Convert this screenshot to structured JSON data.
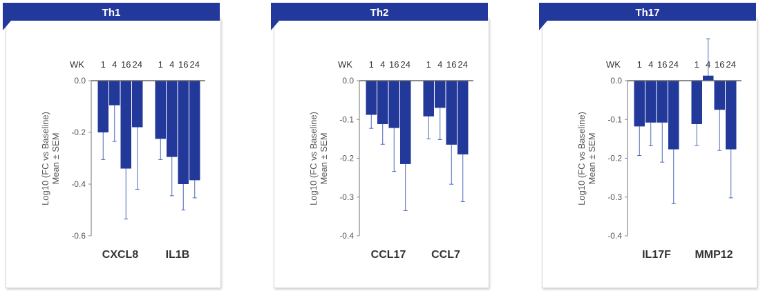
{
  "colors": {
    "bar": "#22399a",
    "banner": "#23389b",
    "error": "#4a68b5",
    "axis": "#888888",
    "text": "#555555"
  },
  "ylabel_line1": "Log10 (FC vs Baseline)",
  "ylabel_line2": "Mean ± SEM",
  "week_label": "WK",
  "chart_data": [
    {
      "type": "bar",
      "title": "Th1",
      "weeks": [
        "1",
        "4",
        "16",
        "24"
      ],
      "ylim": [
        -0.6,
        0.0
      ],
      "yticks": [
        0.0,
        -0.2,
        -0.4,
        -0.6
      ],
      "tick_labels": [
        "0.0",
        "-0.2",
        "-0.4",
        "-0.6"
      ],
      "series": [
        {
          "name": "CXCL8",
          "values": [
            -0.2,
            -0.095,
            -0.34,
            -0.18
          ],
          "errors": [
            0.105,
            0.14,
            0.195,
            0.24
          ]
        },
        {
          "name": "IL1B",
          "values": [
            -0.225,
            -0.295,
            -0.4,
            -0.385
          ],
          "errors": [
            0.08,
            0.15,
            0.1,
            0.068
          ]
        }
      ]
    },
    {
      "type": "bar",
      "title": "Th2",
      "weeks": [
        "1",
        "4",
        "16",
        "24"
      ],
      "ylim": [
        -0.4,
        0.0
      ],
      "yticks": [
        0.0,
        -0.1,
        -0.2,
        -0.3,
        -0.4
      ],
      "tick_labels": [
        "0.0",
        "-0.1",
        "-0.2",
        "-0.3",
        "-0.4"
      ],
      "series": [
        {
          "name": "CCL17",
          "values": [
            -0.088,
            -0.112,
            -0.122,
            -0.215
          ],
          "errors": [
            0.035,
            0.052,
            0.112,
            0.12
          ]
        },
        {
          "name": "CCL7",
          "values": [
            -0.092,
            -0.07,
            -0.165,
            -0.19
          ],
          "errors": [
            0.058,
            0.082,
            0.102,
            0.122
          ]
        }
      ]
    },
    {
      "type": "bar",
      "title": "Th17",
      "weeks": [
        "1",
        "4",
        "16",
        "24"
      ],
      "ylim": [
        -0.4,
        0.0
      ],
      "yticks": [
        0.0,
        -0.1,
        -0.2,
        -0.3,
        -0.4
      ],
      "tick_labels": [
        "0.0",
        "-0.1",
        "-0.2",
        "-0.3",
        "-0.4"
      ],
      "series": [
        {
          "name": "IL17F",
          "values": [
            -0.118,
            -0.108,
            -0.108,
            -0.177
          ],
          "errors": [
            0.075,
            0.06,
            0.102,
            0.14
          ]
        },
        {
          "name": "MMP12",
          "values": [
            -0.112,
            0.013,
            -0.075,
            -0.177
          ],
          "errors": [
            0.055,
            0.095,
            0.105,
            0.125
          ]
        }
      ]
    }
  ]
}
